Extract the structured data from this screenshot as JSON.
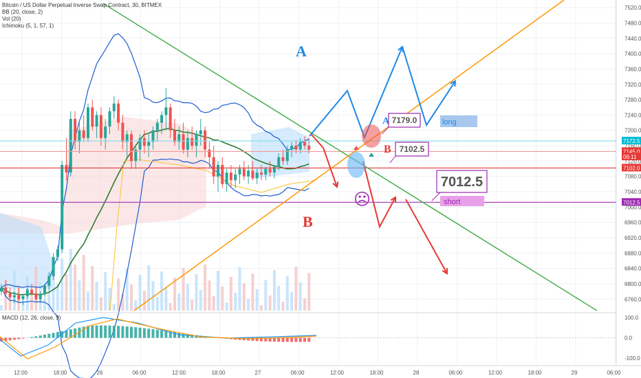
{
  "header": {
    "title": "Bitcoin / US Dollar Perpetual Inverse Swap Contract, 30, BITMEX",
    "indicators": [
      "BB (20, close, 2)",
      "Vol (20)",
      "Ichimoku (5, 1, 57, 1)"
    ]
  },
  "macd_legend": "MACD (12, 26, close, 9)",
  "chart_data": [
    {
      "type": "candlestick",
      "title": "Bitcoin / US Dollar Perpetual Inverse Swap Contract, 30, BITMEX",
      "ylim": [
        6730,
        7540
      ],
      "y_ticks": [
        "7520.0",
        "7480.0",
        "7440.0",
        "7400.0",
        "7360.0",
        "7320.0",
        "7280.0",
        "7240.0",
        "7200.0",
        "7160.0",
        "7120.0",
        "7080.0",
        "7040.0",
        "7000.0",
        "6960.0",
        "6920.0",
        "6880.0",
        "6840.0",
        "6800.0",
        "6760.0"
      ],
      "x_ticks": [
        "12:00",
        "18:00",
        "26",
        "06:00",
        "12:00",
        "18:00",
        "27",
        "06:00",
        "12:00",
        "18:00",
        "28",
        "06:00",
        "12:00",
        "18:00",
        "29",
        "06:00"
      ],
      "price_labels": [
        {
          "value": 7172.5,
          "text": "7172.5",
          "color": "#00bcd4"
        },
        {
          "value": 7145.0,
          "text": "7145.0",
          "color": "#e53935"
        },
        {
          "value": 7131.0,
          "text": "06:11",
          "color": "#e53935"
        },
        {
          "value": 7102.0,
          "text": "7102.0",
          "color": "#e53935"
        },
        {
          "value": 7012.5,
          "text": "7012.5",
          "color": "#9c27b0"
        }
      ],
      "horizontal_lines": [
        {
          "value": 7172.5,
          "color": "#80deea"
        },
        {
          "value": 7145.0,
          "color": "#ef9a9a"
        },
        {
          "value": 7102.0,
          "color": "#e53935"
        },
        {
          "value": 7012.5,
          "color": "#ab47bc"
        }
      ],
      "candles": {
        "start_index": 0,
        "ohlc": [
          [
            6780,
            6800,
            6770,
            6790
          ],
          [
            6790,
            6810,
            6770,
            6775
          ],
          [
            6775,
            6790,
            6760,
            6765
          ],
          [
            6765,
            6780,
            6750,
            6770
          ],
          [
            6770,
            6790,
            6755,
            6760
          ],
          [
            6760,
            6775,
            6745,
            6768
          ],
          [
            6768,
            6790,
            6760,
            6785
          ],
          [
            6785,
            6800,
            6770,
            6775
          ],
          [
            6775,
            6790,
            6755,
            6760
          ],
          [
            6760,
            6780,
            6750,
            6772
          ],
          [
            6772,
            6800,
            6765,
            6795
          ],
          [
            6795,
            6830,
            6785,
            6820
          ],
          [
            6820,
            6880,
            6810,
            6870
          ],
          [
            6870,
            6900,
            6860,
            6890
          ],
          [
            6890,
            7120,
            6880,
            7110
          ],
          [
            7110,
            7180,
            7070,
            7090
          ],
          [
            7090,
            7250,
            7080,
            7230
          ],
          [
            7230,
            7250,
            7150,
            7170
          ],
          [
            7170,
            7220,
            7140,
            7200
          ],
          [
            7200,
            7240,
            7170,
            7180
          ],
          [
            7180,
            7270,
            7170,
            7260
          ],
          [
            7260,
            7280,
            7200,
            7210
          ],
          [
            7210,
            7250,
            7180,
            7240
          ],
          [
            7240,
            7260,
            7160,
            7180
          ],
          [
            7180,
            7230,
            7150,
            7210
          ],
          [
            7210,
            7260,
            7190,
            7250
          ],
          [
            7250,
            7290,
            7230,
            7270
          ],
          [
            7270,
            7280,
            7200,
            7220
          ],
          [
            7220,
            7240,
            7150,
            7170
          ],
          [
            7170,
            7200,
            7130,
            7190
          ],
          [
            7190,
            7200,
            7100,
            7120
          ],
          [
            7120,
            7160,
            7100,
            7150
          ],
          [
            7150,
            7190,
            7120,
            7180
          ],
          [
            7180,
            7200,
            7140,
            7160
          ],
          [
            7160,
            7190,
            7130,
            7170
          ],
          [
            7170,
            7210,
            7150,
            7200
          ],
          [
            7200,
            7230,
            7170,
            7220
          ],
          [
            7220,
            7250,
            7190,
            7240
          ],
          [
            7240,
            7310,
            7200,
            7260
          ],
          [
            7260,
            7270,
            7180,
            7200
          ],
          [
            7200,
            7230,
            7160,
            7170
          ],
          [
            7170,
            7210,
            7150,
            7190
          ],
          [
            7190,
            7220,
            7140,
            7150
          ],
          [
            7150,
            7200,
            7130,
            7180
          ],
          [
            7180,
            7210,
            7150,
            7160
          ],
          [
            7160,
            7200,
            7130,
            7190
          ],
          [
            7190,
            7230,
            7160,
            7200
          ],
          [
            7200,
            7210,
            7130,
            7150
          ],
          [
            7150,
            7170,
            7100,
            7130
          ],
          [
            7130,
            7160,
            7060,
            7080
          ],
          [
            7080,
            7120,
            7040,
            7110
          ],
          [
            7110,
            7130,
            7050,
            7060
          ],
          [
            7060,
            7100,
            7040,
            7090
          ],
          [
            7090,
            7110,
            7050,
            7070
          ],
          [
            7070,
            7100,
            7050,
            7085
          ],
          [
            7085,
            7110,
            7060,
            7100
          ],
          [
            7100,
            7120,
            7070,
            7080
          ],
          [
            7080,
            7110,
            7060,
            7095
          ],
          [
            7095,
            7120,
            7070,
            7075
          ],
          [
            7075,
            7100,
            7060,
            7090
          ],
          [
            7090,
            7110,
            7070,
            7085
          ],
          [
            7085,
            7105,
            7070,
            7100
          ],
          [
            7100,
            7120,
            7080,
            7090
          ],
          [
            7090,
            7110,
            7075,
            7105
          ],
          [
            7105,
            7140,
            7095,
            7130
          ],
          [
            7130,
            7150,
            7110,
            7120
          ],
          [
            7120,
            7160,
            7110,
            7150
          ],
          [
            7150,
            7170,
            7130,
            7160
          ],
          [
            7160,
            7175,
            7140,
            7150
          ],
          [
            7150,
            7180,
            7140,
            7170
          ],
          [
            7170,
            7185,
            7150,
            7160
          ],
          [
            7160,
            7180,
            7140,
            7150
          ]
        ],
        "up_color": "#26a69a",
        "down_color": "#ef5350"
      },
      "annotations": [
        {
          "text": "A",
          "color": "#1e88e5"
        },
        {
          "text": "A",
          "color": "#1e88e5"
        },
        {
          "text": "B",
          "color": "#e53935"
        },
        {
          "text": "B",
          "color": "#e53935"
        },
        {
          "text": "7179.0",
          "color": "#9c27b0"
        },
        {
          "text": "7102.5",
          "color": "#9c27b0"
        },
        {
          "text": "7012.5",
          "color": "#9c27b0"
        },
        {
          "text": "long",
          "color": "#1e88e5"
        },
        {
          "text": "short",
          "color": "#9c27b0"
        },
        {
          "text": "☹",
          "color": "#9c27b0"
        }
      ]
    },
    {
      "type": "line",
      "title": "MACD (12, 26, close, 9)",
      "ylim": [
        -130,
        120
      ],
      "y_ticks": [
        "100.0",
        "0.0",
        "-100.0"
      ]
    }
  ],
  "colors": {
    "grid": "#eef1f5",
    "axis_text": "#555555",
    "bb_band": "#1e5bd0",
    "bb_basis": "#2e7d32",
    "ichimoku_cloud_bull": "#bbdefb",
    "ichimoku_cloud_bear": "#f8d0d0",
    "trend_green": "#4caf50",
    "trend_orange": "#ff9800",
    "arrow_blue": "#1e88e5",
    "arrow_red": "#e53935"
  }
}
